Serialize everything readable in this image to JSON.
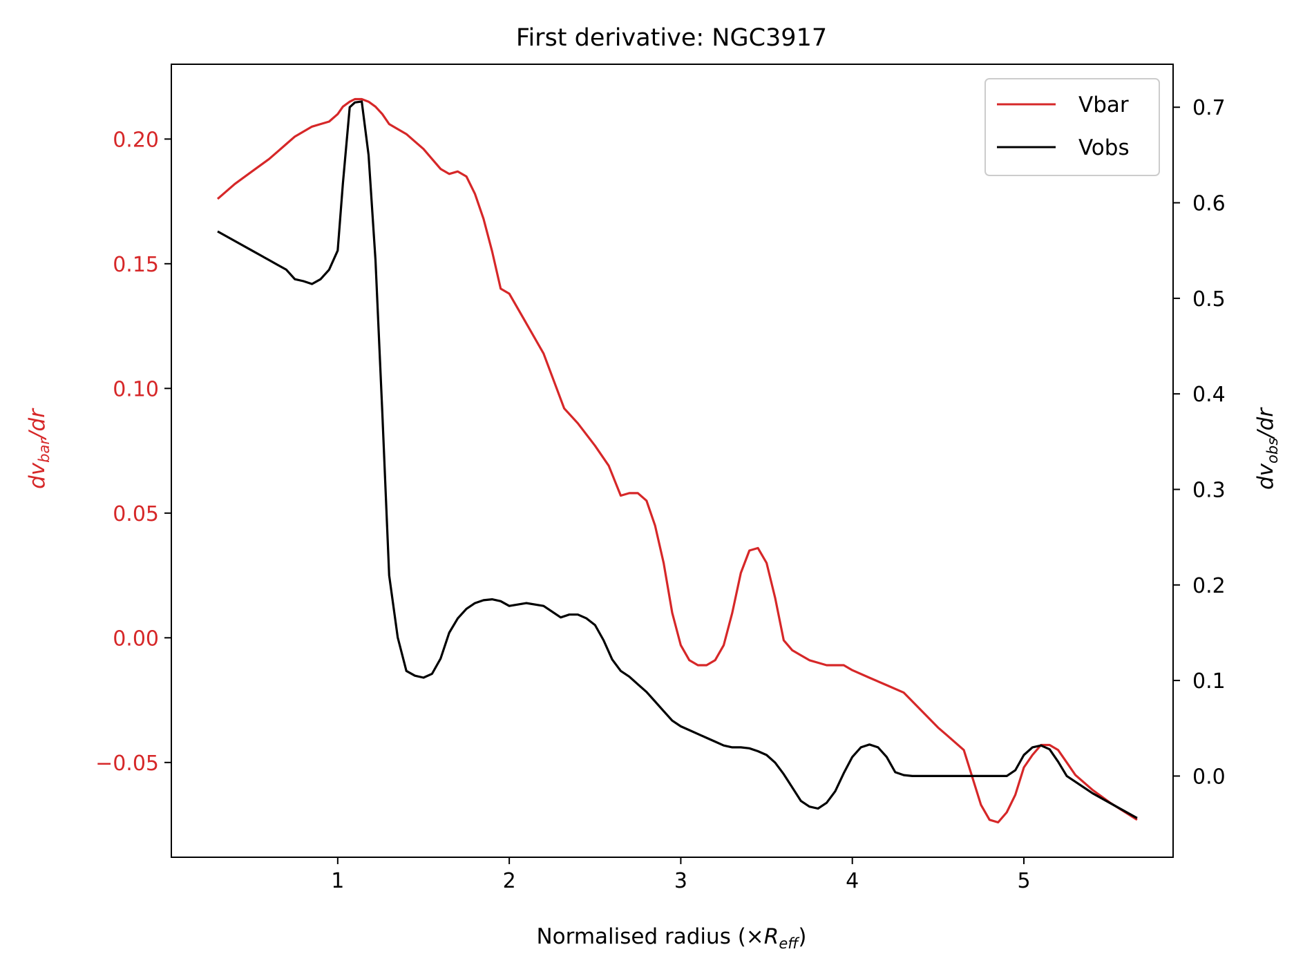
{
  "chart_data": {
    "type": "line",
    "title": "First derivative: NGC3917",
    "xlabel": {
      "main": "Normalised radius (×",
      "sym": "R",
      "sub": "eff",
      "close": ")"
    },
    "ylabel_left": {
      "pre": "dv",
      "sub": "bar",
      "post": "/dr"
    },
    "ylabel_right": {
      "pre": "dv",
      "sub": "obs",
      "post": "/dr"
    },
    "xlim": [
      0.03,
      5.87
    ],
    "ylim_left": [
      -0.088,
      0.23
    ],
    "ylim_right": [
      -0.085,
      0.745
    ],
    "x_ticks": [
      1,
      2,
      3,
      4,
      5
    ],
    "x_tick_labels": [
      "1",
      "2",
      "3",
      "4",
      "5"
    ],
    "y_left_ticks": [
      -0.05,
      0.0,
      0.05,
      0.1,
      0.15,
      0.2
    ],
    "y_left_tick_labels": [
      "−0.05",
      "0.00",
      "0.05",
      "0.10",
      "0.15",
      "0.20"
    ],
    "y_right_ticks": [
      0.0,
      0.1,
      0.2,
      0.3,
      0.4,
      0.5,
      0.6,
      0.7
    ],
    "y_right_tick_labels": [
      "0.0",
      "0.1",
      "0.2",
      "0.3",
      "0.4",
      "0.5",
      "0.6",
      "0.7"
    ],
    "legend": {
      "position": "top-right",
      "entries": [
        "Vbar",
        "Vobs"
      ]
    },
    "series": [
      {
        "name": "Vbar",
        "axis": "left",
        "color": "#d62728",
        "x": [
          0.3,
          0.4,
          0.5,
          0.6,
          0.65,
          0.7,
          0.75,
          0.8,
          0.85,
          0.9,
          0.95,
          1.0,
          1.03,
          1.07,
          1.1,
          1.14,
          1.18,
          1.22,
          1.26,
          1.3,
          1.35,
          1.4,
          1.45,
          1.5,
          1.55,
          1.6,
          1.65,
          1.7,
          1.75,
          1.8,
          1.85,
          1.9,
          1.95,
          2.0,
          2.1,
          2.2,
          2.32,
          2.4,
          2.5,
          2.58,
          2.65,
          2.7,
          2.75,
          2.8,
          2.85,
          2.9,
          2.95,
          3.0,
          3.05,
          3.1,
          3.15,
          3.2,
          3.25,
          3.3,
          3.35,
          3.4,
          3.45,
          3.5,
          3.55,
          3.6,
          3.65,
          3.7,
          3.75,
          3.8,
          3.85,
          3.9,
          3.95,
          4.0,
          4.1,
          4.2,
          4.3,
          4.4,
          4.5,
          4.55,
          4.6,
          4.65,
          4.7,
          4.75,
          4.8,
          4.85,
          4.9,
          4.95,
          5.0,
          5.05,
          5.1,
          5.15,
          5.2,
          5.25,
          5.3,
          5.35,
          5.4,
          5.5,
          5.66
        ],
        "values": [
          0.176,
          0.182,
          0.187,
          0.192,
          0.195,
          0.198,
          0.201,
          0.203,
          0.205,
          0.206,
          0.207,
          0.21,
          0.213,
          0.215,
          0.216,
          0.216,
          0.215,
          0.213,
          0.21,
          0.206,
          0.204,
          0.202,
          0.199,
          0.196,
          0.192,
          0.188,
          0.186,
          0.187,
          0.185,
          0.178,
          0.168,
          0.155,
          0.14,
          0.138,
          0.126,
          0.114,
          0.092,
          0.086,
          0.077,
          0.069,
          0.057,
          0.058,
          0.058,
          0.055,
          0.045,
          0.03,
          0.01,
          -0.003,
          -0.009,
          -0.011,
          -0.011,
          -0.009,
          -0.003,
          0.01,
          0.026,
          0.035,
          0.036,
          0.03,
          0.016,
          -0.001,
          -0.005,
          -0.007,
          -0.009,
          -0.01,
          -0.011,
          -0.011,
          -0.011,
          -0.013,
          -0.016,
          -0.019,
          -0.022,
          -0.029,
          -0.036,
          -0.039,
          -0.042,
          -0.045,
          -0.056,
          -0.067,
          -0.073,
          -0.074,
          -0.07,
          -0.063,
          -0.052,
          -0.047,
          -0.043,
          -0.043,
          -0.045,
          -0.05,
          -0.055,
          -0.058,
          -0.061,
          -0.066,
          -0.073
        ]
      },
      {
        "name": "Vobs",
        "axis": "right",
        "color": "#000000",
        "x": [
          0.3,
          0.4,
          0.5,
          0.6,
          0.65,
          0.7,
          0.75,
          0.8,
          0.85,
          0.9,
          0.95,
          1.0,
          1.03,
          1.07,
          1.1,
          1.14,
          1.18,
          1.22,
          1.26,
          1.3,
          1.35,
          1.4,
          1.45,
          1.5,
          1.55,
          1.6,
          1.65,
          1.7,
          1.75,
          1.8,
          1.85,
          1.9,
          1.95,
          2.0,
          2.1,
          2.2,
          2.3,
          2.35,
          2.4,
          2.45,
          2.5,
          2.55,
          2.6,
          2.65,
          2.7,
          2.75,
          2.8,
          2.85,
          2.9,
          2.95,
          3.0,
          3.05,
          3.1,
          3.15,
          3.2,
          3.25,
          3.3,
          3.35,
          3.4,
          3.45,
          3.5,
          3.55,
          3.6,
          3.65,
          3.7,
          3.75,
          3.8,
          3.85,
          3.9,
          3.95,
          4.0,
          4.05,
          4.1,
          4.15,
          4.2,
          4.25,
          4.3,
          4.35,
          4.5,
          4.7,
          4.9,
          4.95,
          5.0,
          5.05,
          5.1,
          5.15,
          5.2,
          5.25,
          5.3,
          5.35,
          5.4,
          5.5,
          5.66
        ],
        "values": [
          0.57,
          0.56,
          0.55,
          0.54,
          0.535,
          0.53,
          0.52,
          0.518,
          0.515,
          0.52,
          0.53,
          0.55,
          0.62,
          0.7,
          0.705,
          0.706,
          0.65,
          0.54,
          0.38,
          0.21,
          0.145,
          0.11,
          0.105,
          0.103,
          0.107,
          0.123,
          0.15,
          0.165,
          0.175,
          0.181,
          0.184,
          0.185,
          0.183,
          0.178,
          0.181,
          0.178,
          0.166,
          0.169,
          0.169,
          0.165,
          0.158,
          0.142,
          0.122,
          0.11,
          0.104,
          0.096,
          0.088,
          0.078,
          0.068,
          0.058,
          0.052,
          0.048,
          0.044,
          0.04,
          0.036,
          0.032,
          0.03,
          0.03,
          0.029,
          0.026,
          0.022,
          0.014,
          0.002,
          -0.012,
          -0.026,
          -0.032,
          -0.034,
          -0.028,
          -0.016,
          0.003,
          0.02,
          0.03,
          0.033,
          0.03,
          0.02,
          0.004,
          0.001,
          0.0,
          0.0,
          0.0,
          0.0,
          0.006,
          0.022,
          0.03,
          0.032,
          0.028,
          0.015,
          0.0,
          -0.006,
          -0.012,
          -0.018,
          -0.028,
          -0.044
        ]
      }
    ]
  }
}
